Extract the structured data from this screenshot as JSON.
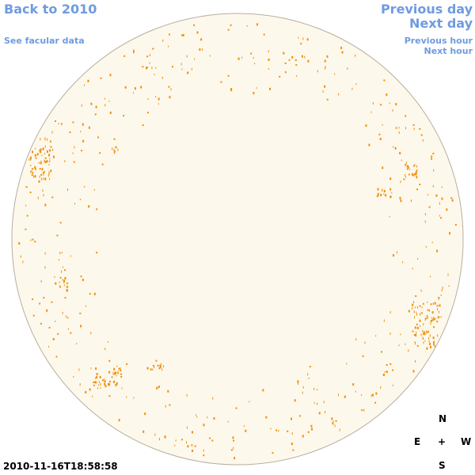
{
  "links": {
    "back": "Back to 2010",
    "facular": "See facular data",
    "previous_day": "Previous day",
    "next_day": "Next day",
    "previous_hour": "Previous hour",
    "next_hour": "Next hour"
  },
  "timestamp": "2010-11-16T18:58:58",
  "compass": {
    "north": "N",
    "east": "E",
    "center": "+",
    "west": "W",
    "south": "S"
  }
}
